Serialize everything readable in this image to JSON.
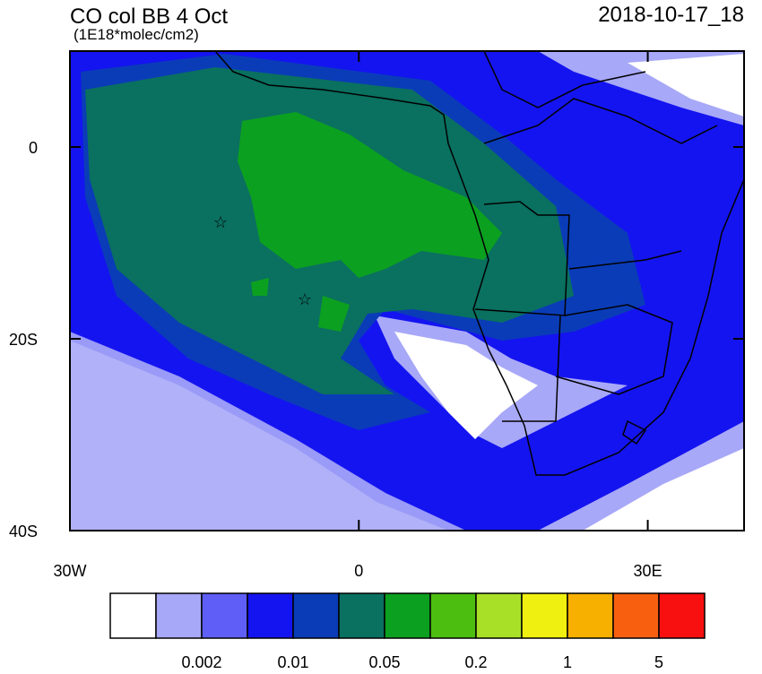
{
  "title": "CO col BB 4 Oct",
  "units": "(1E18*molec/cm2)",
  "date": "2018-10-17_18",
  "axes": {
    "xlim": [
      -30,
      40
    ],
    "ylim": [
      -40,
      10
    ],
    "xticks": [
      {
        "value": -30,
        "label": "30W"
      },
      0,
      {
        "value": 30,
        "label": "30E"
      }
    ],
    "yticks": [
      0,
      {
        "value": -20,
        "label": "20S"
      },
      {
        "value": -40,
        "label": "40S"
      }
    ]
  },
  "colorbar": {
    "colors": [
      "#ffffff",
      "#a8a8f8",
      "#5f5ff8",
      "#1414f0",
      "#0a3cb8",
      "#0a7060",
      "#0ca020",
      "#4cbe10",
      "#a8e028",
      "#f0f010",
      "#f8b000",
      "#f86010",
      "#f81010"
    ],
    "labels": [
      0.002,
      0.01,
      0.05,
      0.2,
      1,
      5
    ]
  }
}
